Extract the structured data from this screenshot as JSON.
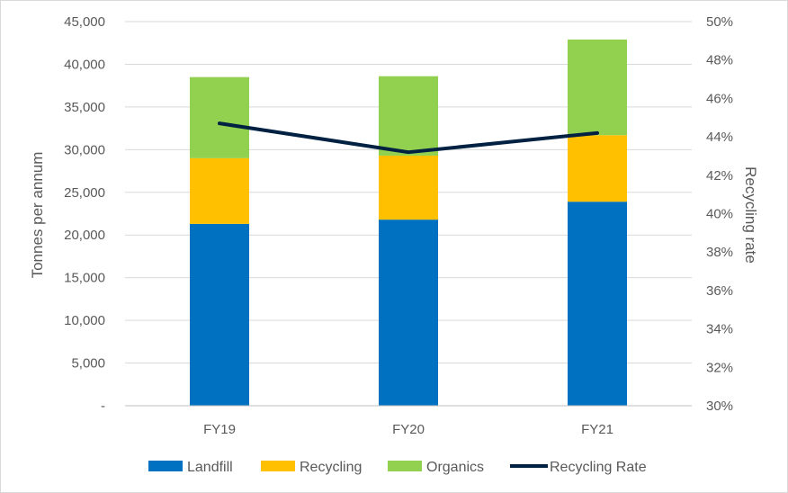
{
  "chart_data": {
    "type": "bar",
    "stacked": true,
    "categories": [
      "FY19",
      "FY20",
      "FY21"
    ],
    "series": [
      {
        "name": "Landfill",
        "values": [
          21300,
          21800,
          23900
        ],
        "color": "#0070c0",
        "kind": "bar"
      },
      {
        "name": "Recycling",
        "values": [
          7700,
          7500,
          7800
        ],
        "color": "#ffc000",
        "kind": "bar"
      },
      {
        "name": "Organics",
        "values": [
          9500,
          9300,
          11200
        ],
        "color": "#92d050",
        "kind": "bar"
      },
      {
        "name": "Recycling Rate",
        "values": [
          44.7,
          43.2,
          44.2
        ],
        "color": "#002142",
        "kind": "line",
        "axis": "right"
      }
    ],
    "title": "",
    "xlabel": "",
    "ylabel": "Tonnes per annum",
    "y2label": "Recycling rate",
    "ylim": [
      0,
      45000
    ],
    "y2lim": [
      30,
      50
    ],
    "yticks": [
      "-",
      "5,000",
      "10,000",
      "15,000",
      "20,000",
      "25,000",
      "30,000",
      "35,000",
      "40,000",
      "45,000"
    ],
    "y2ticks": [
      "30%",
      "32%",
      "34%",
      "36%",
      "38%",
      "40%",
      "42%",
      "44%",
      "46%",
      "48%",
      "50%"
    ],
    "grid": true,
    "legend": "bottom"
  }
}
